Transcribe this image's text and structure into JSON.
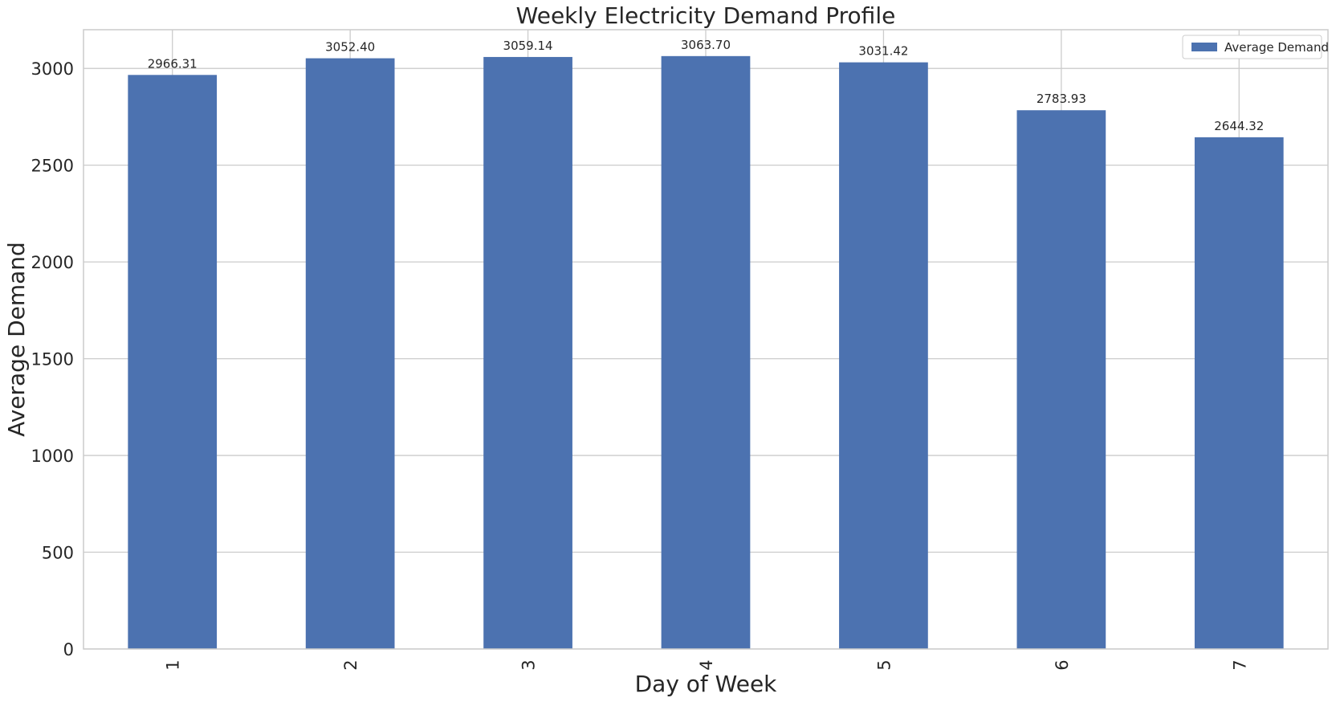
{
  "chart_data": {
    "type": "bar",
    "title": "Weekly Electricity Demand Profile",
    "xlabel": "Day of Week",
    "ylabel": "Average Demand",
    "categories": [
      "1",
      "2",
      "3",
      "4",
      "5",
      "6",
      "7"
    ],
    "series": [
      {
        "name": "Average Demand",
        "values": [
          2966.31,
          3052.4,
          3059.14,
          3063.7,
          3031.42,
          2783.93,
          2644.32
        ],
        "labels": [
          "2966.31",
          "3052.40",
          "3059.14",
          "3063.70",
          "3031.42",
          "2783.93",
          "2644.32"
        ],
        "color": "#4c72b0"
      }
    ],
    "ylim": [
      0,
      3200
    ],
    "yticks": [
      "0",
      "500",
      "1000",
      "1500",
      "2000",
      "2500",
      "3000"
    ],
    "grid": true,
    "legend": "top-right",
    "colors": {
      "grid": "#cccccc",
      "axis": "#cccccc",
      "text": "#262626",
      "background": "#ffffff"
    }
  }
}
